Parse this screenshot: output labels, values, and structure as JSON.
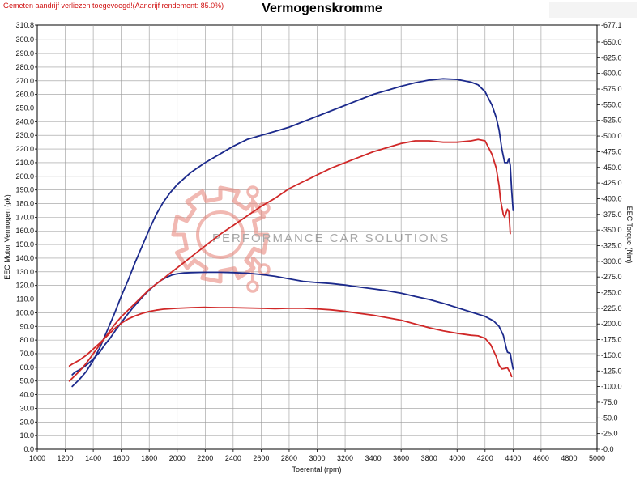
{
  "header": {
    "note": "Gemeten aandrijf verliezen toegevoegd!(Aandrijf rendement: 85.0%)",
    "title": "Vermogenskromme"
  },
  "watermark": {
    "text": "PERFORMANCE CAR SOLUTIONS",
    "color": "#e88a80"
  },
  "chart_data": {
    "type": "line",
    "title": "Vermogenskromme",
    "xlabel": "Toerental (rpm)",
    "ylabel": "EEC Motor Vermogen (pk)",
    "y2label": "EEC Torque (Nm)",
    "xlim": [
      1000,
      5000
    ],
    "ylim": [
      0,
      310.8
    ],
    "y2lim": [
      0,
      677.1
    ],
    "grid": true,
    "x_ticks": [
      "1000",
      "1200",
      "1400",
      "1600",
      "1800",
      "2000",
      "2200",
      "2400",
      "2600",
      "2800",
      "3000",
      "3200",
      "3400",
      "3600",
      "3800",
      "4000",
      "4200",
      "4400",
      "4600",
      "4800",
      "5000"
    ],
    "y_ticks": [
      "0.0",
      "10.0",
      "20.0",
      "30.0",
      "40.0",
      "50.0",
      "60.0",
      "70.0",
      "80.0",
      "90.0",
      "100.0",
      "110.0",
      "120.0",
      "130.0",
      "140.0",
      "150.0",
      "160.0",
      "170.0",
      "180.0",
      "190.0",
      "200.0",
      "210.0",
      "220.0",
      "230.0",
      "240.0",
      "250.0",
      "260.0",
      "270.0",
      "280.0",
      "290.0",
      "300.0",
      "310.8"
    ],
    "y2_ticks": [
      "0.0",
      "25.0",
      "50.0",
      "75.0",
      "100.0",
      "125.0",
      "150.0",
      "175.0",
      "200.0",
      "225.0",
      "250.0",
      "275.0",
      "300.0",
      "325.0",
      "350.0",
      "375.0",
      "400.0",
      "425.0",
      "450.0",
      "475.0",
      "500.0",
      "525.0",
      "550.0",
      "575.0",
      "600.0",
      "625.0",
      "650.0",
      "677.1"
    ],
    "series": [
      {
        "axis": "torque",
        "color": "#1c2a8c",
        "points": [
          [
            1250,
            119
          ],
          [
            1270,
            123
          ],
          [
            1320,
            129
          ],
          [
            1360,
            136
          ],
          [
            1400,
            144
          ],
          [
            1450,
            156
          ],
          [
            1480,
            166
          ],
          [
            1520,
            177
          ],
          [
            1560,
            190
          ],
          [
            1600,
            202
          ],
          [
            1640,
            214
          ],
          [
            1680,
            225
          ],
          [
            1720,
            235
          ],
          [
            1760,
            245
          ],
          [
            1800,
            254
          ],
          [
            1840,
            262
          ],
          [
            1880,
            269
          ],
          [
            1920,
            274
          ],
          [
            1960,
            278
          ],
          [
            2000,
            280
          ],
          [
            2050,
            281.5
          ],
          [
            2100,
            282
          ],
          [
            2200,
            282.5
          ],
          [
            2300,
            282.5
          ],
          [
            2400,
            282
          ],
          [
            2500,
            281
          ],
          [
            2600,
            279
          ],
          [
            2700,
            276
          ],
          [
            2800,
            272
          ],
          [
            2900,
            268
          ],
          [
            3000,
            266
          ],
          [
            3100,
            264.5
          ],
          [
            3200,
            262
          ],
          [
            3300,
            259
          ],
          [
            3400,
            256
          ],
          [
            3500,
            253
          ],
          [
            3600,
            249
          ],
          [
            3700,
            244
          ],
          [
            3800,
            239
          ],
          [
            3900,
            233
          ],
          [
            4000,
            226
          ],
          [
            4100,
            219
          ],
          [
            4200,
            212
          ],
          [
            4260,
            205
          ],
          [
            4300,
            196
          ],
          [
            4330,
            182
          ],
          [
            4350,
            163
          ],
          [
            4360,
            155
          ],
          [
            4380,
            153
          ],
          [
            4390,
            140
          ],
          [
            4400,
            128
          ]
        ]
      },
      {
        "axis": "power",
        "color": "#1c2a8c",
        "points": [
          [
            1250,
            46
          ],
          [
            1300,
            51
          ],
          [
            1350,
            57
          ],
          [
            1400,
            65
          ],
          [
            1450,
            75
          ],
          [
            1500,
            87
          ],
          [
            1550,
            99
          ],
          [
            1600,
            112
          ],
          [
            1650,
            124
          ],
          [
            1700,
            137
          ],
          [
            1750,
            149
          ],
          [
            1800,
            161
          ],
          [
            1850,
            172
          ],
          [
            1900,
            181
          ],
          [
            1950,
            188
          ],
          [
            2000,
            194
          ],
          [
            2100,
            203
          ],
          [
            2200,
            210
          ],
          [
            2300,
            216
          ],
          [
            2400,
            222
          ],
          [
            2500,
            227
          ],
          [
            2600,
            230
          ],
          [
            2700,
            233
          ],
          [
            2800,
            236
          ],
          [
            2900,
            240
          ],
          [
            3000,
            244
          ],
          [
            3100,
            248
          ],
          [
            3200,
            252
          ],
          [
            3300,
            256
          ],
          [
            3400,
            260
          ],
          [
            3500,
            263
          ],
          [
            3600,
            266
          ],
          [
            3700,
            268.5
          ],
          [
            3800,
            270.5
          ],
          [
            3900,
            271.5
          ],
          [
            4000,
            271
          ],
          [
            4100,
            269
          ],
          [
            4150,
            267
          ],
          [
            4200,
            262
          ],
          [
            4250,
            252
          ],
          [
            4280,
            243
          ],
          [
            4300,
            234
          ],
          [
            4320,
            220
          ],
          [
            4340,
            210
          ],
          [
            4360,
            210
          ],
          [
            4370,
            213
          ],
          [
            4380,
            208
          ],
          [
            4390,
            190
          ],
          [
            4400,
            175
          ]
        ]
      },
      {
        "axis": "torque",
        "color": "#d02828",
        "points": [
          [
            1230,
            133
          ],
          [
            1250,
            136
          ],
          [
            1300,
            142
          ],
          [
            1350,
            150
          ],
          [
            1400,
            160
          ],
          [
            1450,
            170
          ],
          [
            1500,
            181
          ],
          [
            1550,
            192
          ],
          [
            1600,
            201
          ],
          [
            1650,
            208
          ],
          [
            1700,
            213
          ],
          [
            1750,
            217
          ],
          [
            1800,
            220
          ],
          [
            1850,
            222
          ],
          [
            1900,
            223.5
          ],
          [
            2000,
            225
          ],
          [
            2100,
            226
          ],
          [
            2200,
            226.5
          ],
          [
            2300,
            226
          ],
          [
            2400,
            226
          ],
          [
            2500,
            225.5
          ],
          [
            2600,
            225
          ],
          [
            2700,
            224.5
          ],
          [
            2800,
            225
          ],
          [
            2900,
            225
          ],
          [
            3000,
            224
          ],
          [
            3100,
            222.5
          ],
          [
            3200,
            220
          ],
          [
            3300,
            217
          ],
          [
            3400,
            214
          ],
          [
            3500,
            210
          ],
          [
            3600,
            206
          ],
          [
            3700,
            200
          ],
          [
            3800,
            194
          ],
          [
            3900,
            189
          ],
          [
            4000,
            185
          ],
          [
            4100,
            182
          ],
          [
            4150,
            181
          ],
          [
            4200,
            177
          ],
          [
            4240,
            167
          ],
          [
            4280,
            148
          ],
          [
            4300,
            134
          ],
          [
            4320,
            128
          ],
          [
            4340,
            129
          ],
          [
            4360,
            130
          ],
          [
            4380,
            122
          ],
          [
            4390,
            116
          ]
        ]
      },
      {
        "axis": "power",
        "color": "#d02828",
        "points": [
          [
            1230,
            50
          ],
          [
            1300,
            57
          ],
          [
            1350,
            63
          ],
          [
            1400,
            70
          ],
          [
            1450,
            77
          ],
          [
            1500,
            84
          ],
          [
            1550,
            91
          ],
          [
            1600,
            97
          ],
          [
            1650,
            102
          ],
          [
            1700,
            107
          ],
          [
            1750,
            112
          ],
          [
            1800,
            117
          ],
          [
            1850,
            121
          ],
          [
            1900,
            125
          ],
          [
            1950,
            129
          ],
          [
            2000,
            133
          ],
          [
            2100,
            141
          ],
          [
            2200,
            149
          ],
          [
            2300,
            157
          ],
          [
            2400,
            164
          ],
          [
            2500,
            171
          ],
          [
            2600,
            178
          ],
          [
            2700,
            184
          ],
          [
            2800,
            191
          ],
          [
            2900,
            196
          ],
          [
            3000,
            201
          ],
          [
            3100,
            206
          ],
          [
            3200,
            210
          ],
          [
            3300,
            214
          ],
          [
            3400,
            218
          ],
          [
            3500,
            221
          ],
          [
            3600,
            224
          ],
          [
            3700,
            226
          ],
          [
            3800,
            226
          ],
          [
            3900,
            225
          ],
          [
            4000,
            225
          ],
          [
            4100,
            226
          ],
          [
            4150,
            227
          ],
          [
            4200,
            226
          ],
          [
            4250,
            216
          ],
          [
            4280,
            206
          ],
          [
            4300,
            193
          ],
          [
            4310,
            183
          ],
          [
            4330,
            172
          ],
          [
            4340,
            170
          ],
          [
            4350,
            173
          ],
          [
            4360,
            176
          ],
          [
            4370,
            174
          ],
          [
            4380,
            158
          ]
        ]
      }
    ]
  }
}
